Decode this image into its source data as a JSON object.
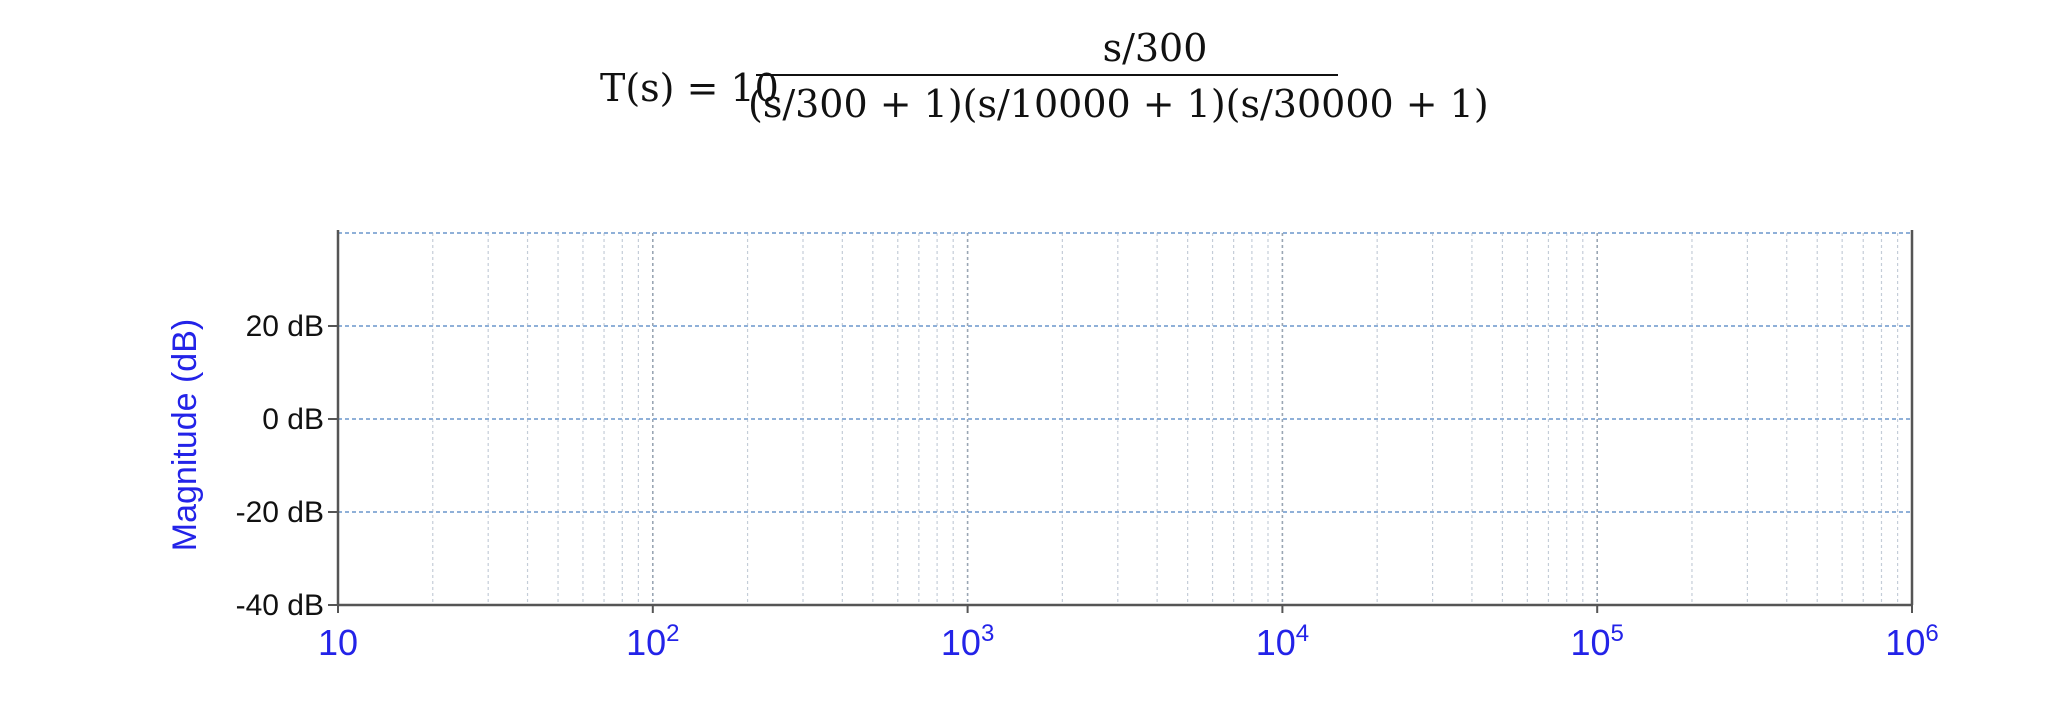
{
  "equation": {
    "lhs": "T(s) = 10",
    "numerator": "s/300",
    "denominator": "(s/300 + 1)(s/10000 + 1)(s/30000 + 1)"
  },
  "chart_data": {
    "type": "line",
    "title": "",
    "xlabel": "",
    "ylabel": "Magnitude (dB)",
    "xscale": "log",
    "xlim": [
      10,
      1000000
    ],
    "ylim": [
      -40,
      40
    ],
    "grid": true,
    "x_ticks": [
      {
        "value": 10,
        "base": "10",
        "exp": ""
      },
      {
        "value": 100,
        "base": "10",
        "exp": "2"
      },
      {
        "value": 1000,
        "base": "10",
        "exp": "3"
      },
      {
        "value": 10000,
        "base": "10",
        "exp": "4"
      },
      {
        "value": 100000,
        "base": "10",
        "exp": "5"
      },
      {
        "value": 1000000,
        "base": "10",
        "exp": "6"
      }
    ],
    "y_ticks": [
      {
        "value": 20,
        "label": "20 dB"
      },
      {
        "value": 0,
        "label": "0 dB"
      },
      {
        "value": -20,
        "label": "-20 dB"
      },
      {
        "value": -40,
        "label": "-40 dB"
      }
    ],
    "series": [],
    "colors": {
      "grid": "#8fb0d8",
      "axis": "#555555",
      "label": "#2323e8"
    }
  }
}
